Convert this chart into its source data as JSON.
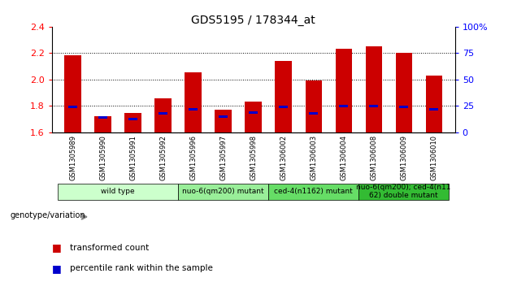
{
  "title": "GDS5195 / 178344_at",
  "samples": [
    "GSM1305989",
    "GSM1305990",
    "GSM1305991",
    "GSM1305992",
    "GSM1305996",
    "GSM1305997",
    "GSM1305998",
    "GSM1306002",
    "GSM1306003",
    "GSM1306004",
    "GSM1306008",
    "GSM1306009",
    "GSM1306010"
  ],
  "transformed_count": [
    2.185,
    1.725,
    1.745,
    1.855,
    2.055,
    1.775,
    1.835,
    2.14,
    1.99,
    2.23,
    2.25,
    2.2,
    2.03
  ],
  "percentile_rank_pct": [
    24,
    14,
    13,
    18,
    22,
    15,
    19,
    24,
    18,
    25,
    25,
    24,
    22
  ],
  "ylim_left": [
    1.6,
    2.4
  ],
  "ylim_right": [
    0,
    100
  ],
  "yticks_left": [
    1.6,
    1.8,
    2.0,
    2.2,
    2.4
  ],
  "yticks_right": [
    0,
    25,
    50,
    75,
    100
  ],
  "bar_bottom": 1.6,
  "groups": [
    {
      "label": "wild type",
      "start": 0,
      "end": 4,
      "color": "#ccffcc"
    },
    {
      "label": "nuo-6(qm200) mutant",
      "start": 4,
      "end": 7,
      "color": "#99ee99"
    },
    {
      "label": "ced-4(n1162) mutant",
      "start": 7,
      "end": 10,
      "color": "#66dd66"
    },
    {
      "label": "nuo-6(qm200); ced-4(n11\n62) double mutant",
      "start": 10,
      "end": 13,
      "color": "#33bb33"
    }
  ],
  "red_color": "#cc0000",
  "blue_color": "#0000cc",
  "bar_width": 0.55,
  "blue_bar_width": 0.3,
  "blue_bar_height": 0.018,
  "background_gray": "#cccccc",
  "legend_label_red": "transformed count",
  "legend_label_blue": "percentile rank within the sample",
  "genotype_label": "genotype/variation"
}
